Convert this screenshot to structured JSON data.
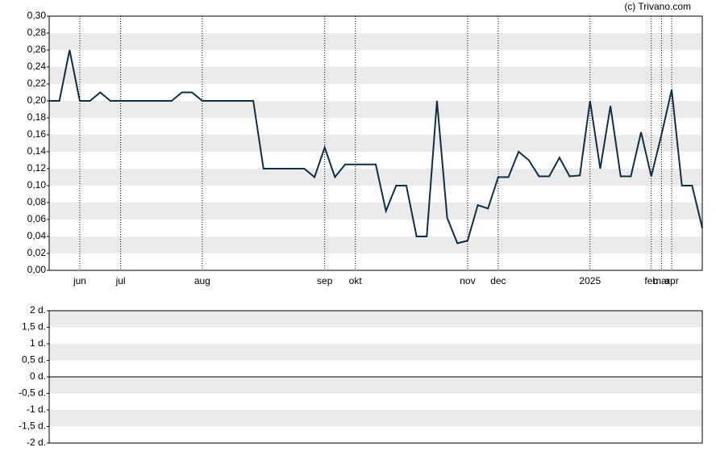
{
  "credit": "(c) Trivano.com",
  "chart_data": [
    {
      "type": "line",
      "categories": [
        null,
        null,
        null,
        "jun",
        null,
        null,
        null,
        "jul",
        null,
        null,
        null,
        null,
        null,
        null,
        null,
        "aug",
        null,
        null,
        null,
        null,
        null,
        null,
        null,
        null,
        null,
        null,
        null,
        "sep",
        null,
        null,
        "okt",
        null,
        null,
        null,
        null,
        null,
        null,
        null,
        null,
        null,
        null,
        "nov",
        null,
        null,
        "dec",
        null,
        null,
        null,
        null,
        null,
        null,
        null,
        null,
        "2025",
        null,
        null,
        null,
        null,
        null,
        "feb",
        "mar",
        "apr",
        null,
        null,
        null
      ],
      "series": [
        {
          "color": "#0d3049",
          "values": [
            0.2,
            0.2,
            0.26,
            0.2,
            0.2,
            0.21,
            0.2,
            0.2,
            0.2,
            0.2,
            0.2,
            0.2,
            0.2,
            0.21,
            0.21,
            0.2,
            0.2,
            0.2,
            0.2,
            0.2,
            0.2,
            0.12,
            0.12,
            0.12,
            0.12,
            0.12,
            0.11,
            0.145,
            0.11,
            0.125,
            0.125,
            0.125,
            0.125,
            0.07,
            0.1,
            0.1,
            0.04,
            0.04,
            0.2,
            0.062,
            0.032,
            0.035,
            0.077,
            0.073,
            0.11,
            0.11,
            0.14,
            0.13,
            0.111,
            0.111,
            0.133,
            0.111,
            0.112,
            0.2,
            0.12,
            0.194,
            0.111,
            0.111,
            0.163,
            0.111,
            0.16,
            0.213,
            0.1,
            0.1,
            0.05
          ]
        }
      ],
      "ylim": [
        0,
        0.3
      ],
      "yticks": [
        {
          "value": 0,
          "label": "0,00"
        },
        {
          "value": 0.02,
          "label": "0,02"
        },
        {
          "value": 0.04,
          "label": "0,04"
        },
        {
          "value": 0.06,
          "label": "0,06"
        },
        {
          "value": 0.08,
          "label": "0,08"
        },
        {
          "value": 0.1,
          "label": "0,10"
        },
        {
          "value": 0.12,
          "label": "0,12"
        },
        {
          "value": 0.14,
          "label": "0,14"
        },
        {
          "value": 0.16,
          "label": "0,16"
        },
        {
          "value": 0.18,
          "label": "0,18"
        },
        {
          "value": 0.2,
          "label": "0,20"
        },
        {
          "value": 0.22,
          "label": "0,22"
        },
        {
          "value": 0.24,
          "label": "0,24"
        },
        {
          "value": 0.26,
          "label": "0,26"
        },
        {
          "value": 0.28,
          "label": "0,28"
        },
        {
          "value": 0.3,
          "label": "0,30"
        }
      ],
      "grid": true
    },
    {
      "type": "bar",
      "ylim": [
        -2,
        2
      ],
      "yticks": [
        {
          "value": -2,
          "label": "-2 d."
        },
        {
          "value": -1.5,
          "label": "-1,5 d."
        },
        {
          "value": -1,
          "label": "-1 d."
        },
        {
          "value": -0.5,
          "label": "-0,5 d."
        },
        {
          "value": 0,
          "label": "0 d."
        },
        {
          "value": 0.5,
          "label": "0,5 d."
        },
        {
          "value": 1,
          "label": "1 d."
        },
        {
          "value": 1.5,
          "label": "1,5 d."
        },
        {
          "value": 2,
          "label": "2 d."
        }
      ],
      "grid": true
    }
  ]
}
